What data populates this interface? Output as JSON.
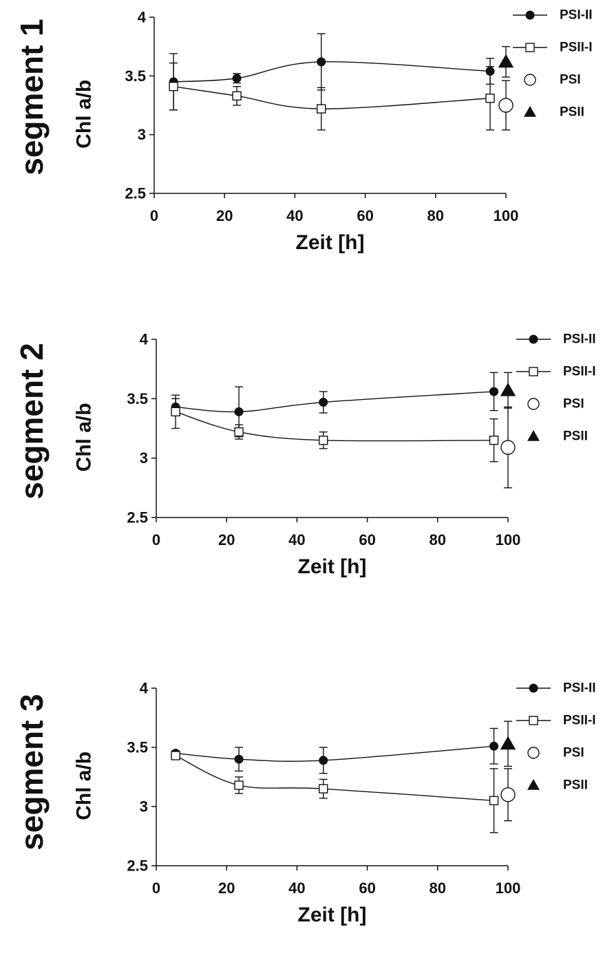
{
  "chart_data": [
    {
      "type": "line",
      "panel_label": "segment  1",
      "xlabel": "Zeit [h]",
      "ylabel": "Chl a/b",
      "xlim": [
        0,
        100
      ],
      "ylim": [
        2.5,
        4
      ],
      "x_ticks": [
        "0",
        "20",
        "40",
        "60",
        "80",
        "100"
      ],
      "y_ticks": [
        "2.5",
        "3",
        "3.5",
        "4"
      ],
      "series": [
        {
          "name": "PSI-II",
          "marker": "filled-circle",
          "x": [
            5.5,
            23.5,
            47.5,
            95.5
          ],
          "y": [
            3.45,
            3.48,
            3.62,
            3.54
          ],
          "err": [
            0.24,
            0.04,
            0.24,
            0.11
          ]
        },
        {
          "name": "PSII-I",
          "marker": "open-square",
          "x": [
            5.5,
            23.5,
            47.5,
            95.5
          ],
          "y": [
            3.41,
            3.33,
            3.22,
            3.31
          ],
          "err": [
            0.2,
            0.08,
            0.18,
            0.27
          ]
        },
        {
          "name": "PSI",
          "marker": "open-circle",
          "x": [
            100
          ],
          "y": [
            3.25
          ],
          "err": [
            0.21
          ]
        },
        {
          "name": "PSII",
          "marker": "filled-triangle",
          "x": [
            100
          ],
          "y": [
            3.62
          ],
          "err": [
            0.13
          ]
        }
      ]
    },
    {
      "type": "line",
      "panel_label": "segment  2",
      "xlabel": "Zeit [h]",
      "ylabel": "Chl a/b",
      "xlim": [
        0,
        100
      ],
      "ylim": [
        2.5,
        4
      ],
      "x_ticks": [
        "0",
        "20",
        "40",
        "60",
        "80",
        "100"
      ],
      "y_ticks": [
        "2.5",
        "3",
        "3.5",
        "4"
      ],
      "series": [
        {
          "name": "PSI-II",
          "marker": "filled-circle",
          "x": [
            5.5,
            23.5,
            47.5,
            96
          ],
          "y": [
            3.43,
            3.39,
            3.47,
            3.56
          ],
          "err": [
            0.07,
            0.21,
            0.09,
            0.16
          ]
        },
        {
          "name": "PSII-I",
          "marker": "open-square",
          "x": [
            5.5,
            23.5,
            47.5,
            96
          ],
          "y": [
            3.39,
            3.22,
            3.15,
            3.15
          ],
          "err": [
            0.14,
            0.06,
            0.07,
            0.18
          ]
        },
        {
          "name": "PSI",
          "marker": "open-circle",
          "x": [
            100
          ],
          "y": [
            3.09
          ],
          "err": [
            0.34
          ]
        },
        {
          "name": "PSII",
          "marker": "filled-triangle",
          "x": [
            100
          ],
          "y": [
            3.57
          ],
          "err": [
            0.15
          ]
        }
      ]
    },
    {
      "type": "line",
      "panel_label": "segment  3",
      "xlabel": "Zeit [h]",
      "ylabel": "Chl a/b",
      "xlim": [
        0,
        100
      ],
      "ylim": [
        2.5,
        4
      ],
      "x_ticks": [
        "0",
        "20",
        "40",
        "60",
        "80",
        "100"
      ],
      "y_ticks": [
        "2.5",
        "3",
        "3.5",
        "4"
      ],
      "series": [
        {
          "name": "PSI-II",
          "marker": "filled-circle",
          "x": [
            5.5,
            23.5,
            47.5,
            96
          ],
          "y": [
            3.45,
            3.4,
            3.39,
            3.51
          ],
          "err": [
            0.02,
            0.1,
            0.11,
            0.15
          ]
        },
        {
          "name": "PSII-I",
          "marker": "open-square",
          "x": [
            5.5,
            23.5,
            47.5,
            96
          ],
          "y": [
            3.43,
            3.18,
            3.15,
            3.05
          ],
          "err": [
            0.03,
            0.07,
            0.08,
            0.27
          ]
        },
        {
          "name": "PSI",
          "marker": "open-circle",
          "x": [
            100
          ],
          "y": [
            3.1
          ],
          "err": [
            0.22
          ]
        },
        {
          "name": "PSII",
          "marker": "filled-triangle",
          "x": [
            100
          ],
          "y": [
            3.53
          ],
          "err": [
            0.19
          ]
        }
      ]
    }
  ]
}
